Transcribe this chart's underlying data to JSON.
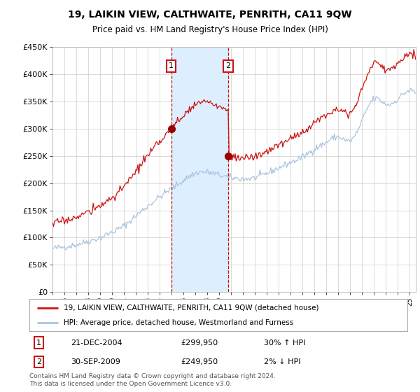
{
  "title": "19, LAIKIN VIEW, CALTHWAITE, PENRITH, CA11 9QW",
  "subtitle": "Price paid vs. HM Land Registry's House Price Index (HPI)",
  "ylabel_ticks": [
    "£0",
    "£50K",
    "£100K",
    "£150K",
    "£200K",
    "£250K",
    "£300K",
    "£350K",
    "£400K",
    "£450K"
  ],
  "ylim": [
    0,
    450000
  ],
  "xlim_start": 1995.0,
  "xlim_end": 2025.5,
  "marker1_x": 2004.97,
  "marker1_y": 299950,
  "marker2_x": 2009.75,
  "marker2_y": 249950,
  "marker1_label": "1",
  "marker2_label": "2",
  "marker1_date": "21-DEC-2004",
  "marker1_price": "£299,950",
  "marker1_hpi": "30% ↑ HPI",
  "marker2_date": "30-SEP-2009",
  "marker2_price": "£249,950",
  "marker2_hpi": "2% ↓ HPI",
  "legend_line1": "19, LAIKIN VIEW, CALTHWAITE, PENRITH, CA11 9QW (detached house)",
  "legend_line2": "HPI: Average price, detached house, Westmorland and Furness",
  "footer": "Contains HM Land Registry data © Crown copyright and database right 2024.\nThis data is licensed under the Open Government Licence v3.0.",
  "hpi_color": "#aac4e0",
  "price_color": "#cc1111",
  "shade_color": "#ddeeff",
  "background_color": "#ffffff",
  "grid_color": "#cccccc"
}
